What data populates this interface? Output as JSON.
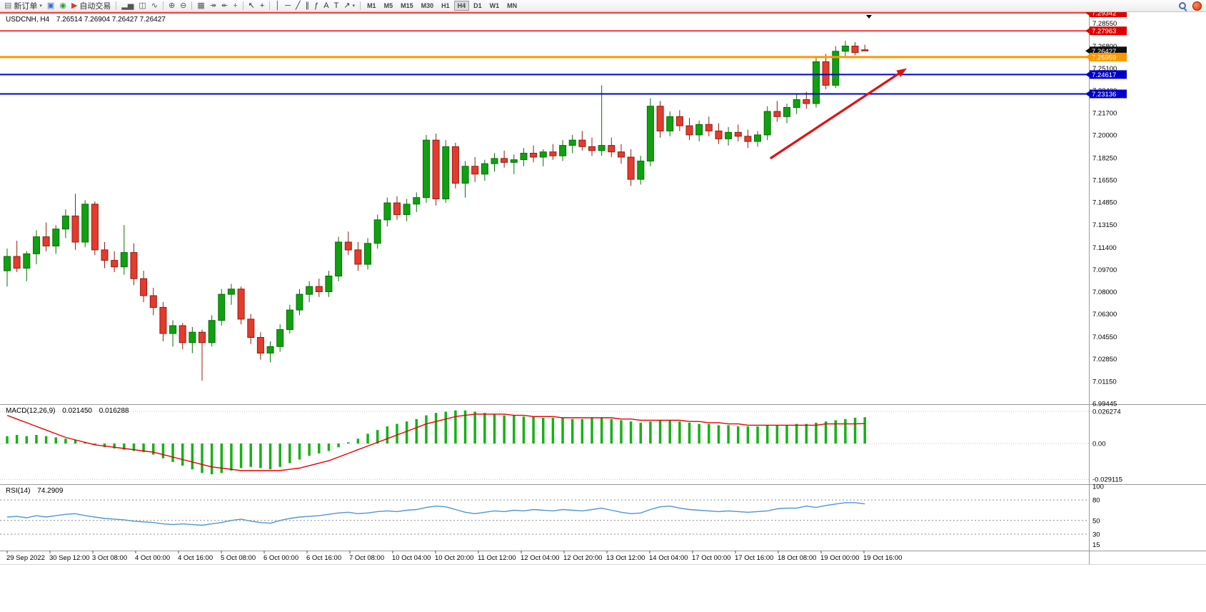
{
  "toolbar": {
    "items": [
      {
        "name": "new-order-button",
        "glyph": "▤",
        "glyph_color": "#777777",
        "label": "新订单",
        "caret": true
      },
      {
        "name": "profiles-icon",
        "glyph": "▣",
        "glyph_color": "#3a6fd8"
      },
      {
        "name": "data-window-icon",
        "glyph": "◉",
        "glyph_color": "#2f9e44"
      },
      {
        "name": "auto-trading-button",
        "glyph": "▶",
        "glyph_color": "#d04030",
        "label": "自动交易"
      },
      {
        "sep": true
      },
      {
        "name": "bar-chart-type-button",
        "glyph": "▂▅",
        "glyph_color": "#555555"
      },
      {
        "name": "candlestick-chart-type-button",
        "glyph": "◫",
        "glyph_color": "#555555"
      },
      {
        "name": "line-chart-type-button",
        "glyph": "∿",
        "glyph_color": "#555555"
      },
      {
        "sep": true
      },
      {
        "name": "zoom-in-button",
        "glyph": "⊕",
        "glyph_color": "#555555"
      },
      {
        "name": "zoom-out-button",
        "glyph": "⊖",
        "glyph_color": "#555555"
      },
      {
        "sep": true
      },
      {
        "name": "tile-windows-button",
        "glyph": "▦",
        "glyph_color": "#555555"
      },
      {
        "name": "auto-scroll-button",
        "glyph": "↠",
        "glyph_color": "#555555"
      },
      {
        "name": "chart-shift-button",
        "glyph": "↞",
        "glyph_color": "#555555"
      },
      {
        "name": "indicators-button",
        "glyph": "+",
        "glyph_color": "#1a9e1a"
      },
      {
        "sep": true
      },
      {
        "name": "cursor-button",
        "glyph": "↖",
        "glyph_color": "#333333"
      },
      {
        "name": "crosshair-button",
        "glyph": "+",
        "glyph_color": "#333333"
      },
      {
        "sep": true
      },
      {
        "name": "vertical-line-button",
        "glyph": "│",
        "glyph_color": "#333333"
      },
      {
        "name": "horizontal-line-button",
        "glyph": "─",
        "glyph_color": "#333333"
      },
      {
        "name": "trendline-button",
        "glyph": "╱",
        "glyph_color": "#333333"
      },
      {
        "name": "equidistant-channel-button",
        "glyph": "∥",
        "glyph_color": "#333333"
      },
      {
        "name": "fibonacci-button",
        "glyph": "ƒ",
        "glyph_color": "#333333"
      },
      {
        "name": "text-button",
        "glyph": "A",
        "glyph_color": "#333333"
      },
      {
        "name": "text-label-button",
        "glyph": "T",
        "glyph_color": "#333333"
      },
      {
        "name": "arrows-button",
        "glyph": "↗",
        "glyph_color": "#333333",
        "caret": true
      }
    ],
    "timeframes": [
      "M1",
      "M5",
      "M15",
      "M30",
      "H1",
      "H4",
      "D1",
      "W1",
      "MN"
    ],
    "active_timeframe": "H4",
    "right_icons": [
      {
        "name": "search-icon",
        "css": "search"
      },
      {
        "name": "notification-icon",
        "css": "dot"
      }
    ]
  },
  "chart_data": {
    "type": "candlestick",
    "symbol": "USDCNH",
    "timeframe": "H4",
    "title_symbol": "USDCNH, H4",
    "title_ohlc": "7.26514 7.26904 7.26427 7.26427",
    "ylim": [
      6.99445,
      7.29342
    ],
    "grid": false,
    "colors": {
      "bull": "#10A010",
      "bull_border": "#077107",
      "bear": "#E33B2D",
      "bear_border": "#951B10",
      "macd_hist": "#18B018",
      "macd_signal": "#E80000",
      "rsi": "#4E96D6",
      "arrow": "#E01212"
    },
    "candles": [
      [
        7.096,
        7.113,
        7.084,
        7.107
      ],
      [
        7.107,
        7.119,
        7.095,
        7.098
      ],
      [
        7.098,
        7.111,
        7.088,
        7.109
      ],
      [
        7.109,
        7.127,
        7.101,
        7.122
      ],
      [
        7.122,
        7.133,
        7.111,
        7.115
      ],
      [
        7.115,
        7.131,
        7.109,
        7.128
      ],
      [
        7.128,
        7.143,
        7.121,
        7.138
      ],
      [
        7.138,
        7.155,
        7.112,
        7.118
      ],
      [
        7.118,
        7.15,
        7.114,
        7.147
      ],
      [
        7.147,
        7.149,
        7.108,
        7.112
      ],
      [
        7.112,
        7.118,
        7.098,
        7.104
      ],
      [
        7.104,
        7.111,
        7.095,
        7.099
      ],
      [
        7.099,
        7.131,
        7.093,
        7.11
      ],
      [
        7.11,
        7.117,
        7.085,
        7.09
      ],
      [
        7.09,
        7.096,
        7.072,
        7.077
      ],
      [
        7.077,
        7.083,
        7.062,
        7.068
      ],
      [
        7.068,
        7.072,
        7.042,
        7.048
      ],
      [
        7.048,
        7.058,
        7.038,
        7.054
      ],
      [
        7.054,
        7.056,
        7.036,
        7.041
      ],
      [
        7.041,
        7.053,
        7.033,
        7.049
      ],
      [
        7.049,
        7.051,
        7.012,
        7.041
      ],
      [
        7.041,
        7.062,
        7.038,
        7.058
      ],
      [
        7.058,
        7.082,
        7.054,
        7.078
      ],
      [
        7.078,
        7.086,
        7.07,
        7.082
      ],
      [
        7.082,
        7.084,
        7.055,
        7.059
      ],
      [
        7.059,
        7.063,
        7.04,
        7.045
      ],
      [
        7.045,
        7.049,
        7.028,
        7.033
      ],
      [
        7.033,
        7.042,
        7.026,
        7.038
      ],
      [
        7.038,
        7.055,
        7.034,
        7.051
      ],
      [
        7.051,
        7.07,
        7.048,
        7.066
      ],
      [
        7.066,
        7.082,
        7.062,
        7.078
      ],
      [
        7.078,
        7.088,
        7.072,
        7.084
      ],
      [
        7.084,
        7.09,
        7.076,
        7.08
      ],
      [
        7.08,
        7.096,
        7.076,
        7.092
      ],
      [
        7.092,
        7.122,
        7.088,
        7.118
      ],
      [
        7.118,
        7.126,
        7.108,
        7.112
      ],
      [
        7.112,
        7.118,
        7.096,
        7.101
      ],
      [
        7.101,
        7.121,
        7.097,
        7.117
      ],
      [
        7.117,
        7.139,
        7.113,
        7.135
      ],
      [
        7.135,
        7.152,
        7.13,
        7.148
      ],
      [
        7.148,
        7.153,
        7.135,
        7.139
      ],
      [
        7.139,
        7.151,
        7.134,
        7.147
      ],
      [
        7.147,
        7.156,
        7.141,
        7.152
      ],
      [
        7.152,
        7.2,
        7.148,
        7.196
      ],
      [
        7.196,
        7.201,
        7.146,
        7.151
      ],
      [
        7.151,
        7.196,
        7.148,
        7.191
      ],
      [
        7.191,
        7.194,
        7.159,
        7.163
      ],
      [
        7.163,
        7.18,
        7.152,
        7.176
      ],
      [
        7.176,
        7.183,
        7.164,
        7.17
      ],
      [
        7.17,
        7.181,
        7.165,
        7.178
      ],
      [
        7.178,
        7.186,
        7.172,
        7.182
      ],
      [
        7.182,
        7.188,
        7.175,
        7.179
      ],
      [
        7.179,
        7.185,
        7.17,
        7.181
      ],
      [
        7.181,
        7.19,
        7.176,
        7.186
      ],
      [
        7.186,
        7.192,
        7.179,
        7.183
      ],
      [
        7.183,
        7.189,
        7.176,
        7.187
      ],
      [
        7.187,
        7.193,
        7.181,
        7.184
      ],
      [
        7.184,
        7.196,
        7.18,
        7.192
      ],
      [
        7.192,
        7.2,
        7.186,
        7.196
      ],
      [
        7.196,
        7.203,
        7.188,
        7.191
      ],
      [
        7.191,
        7.198,
        7.184,
        7.188
      ],
      [
        7.188,
        7.238,
        7.184,
        7.192
      ],
      [
        7.192,
        7.198,
        7.183,
        7.187
      ],
      [
        7.187,
        7.193,
        7.178,
        7.183
      ],
      [
        7.183,
        7.189,
        7.161,
        7.166
      ],
      [
        7.166,
        7.184,
        7.162,
        7.18
      ],
      [
        7.18,
        7.228,
        7.176,
        7.222
      ],
      [
        7.222,
        7.226,
        7.198,
        7.203
      ],
      [
        7.203,
        7.218,
        7.199,
        7.214
      ],
      [
        7.214,
        7.219,
        7.203,
        7.207
      ],
      [
        7.207,
        7.213,
        7.196,
        7.2
      ],
      [
        7.2,
        7.211,
        7.195,
        7.208
      ],
      [
        7.208,
        7.214,
        7.199,
        7.203
      ],
      [
        7.203,
        7.209,
        7.193,
        7.197
      ],
      [
        7.197,
        7.206,
        7.192,
        7.202
      ],
      [
        7.202,
        7.208,
        7.195,
        7.199
      ],
      [
        7.199,
        7.204,
        7.19,
        7.195
      ],
      [
        7.195,
        7.203,
        7.191,
        7.2
      ],
      [
        7.2,
        7.222,
        7.196,
        7.218
      ],
      [
        7.218,
        7.226,
        7.21,
        7.214
      ],
      [
        7.214,
        7.224,
        7.209,
        7.221
      ],
      [
        7.221,
        7.231,
        7.216,
        7.227
      ],
      [
        7.227,
        7.233,
        7.22,
        7.224
      ],
      [
        7.224,
        7.259,
        7.221,
        7.256
      ],
      [
        7.256,
        7.262,
        7.235,
        7.238
      ],
      [
        7.238,
        7.268,
        7.236,
        7.264
      ],
      [
        7.264,
        7.272,
        7.259,
        7.268
      ],
      [
        7.268,
        7.271,
        7.261,
        7.263
      ],
      [
        7.26514,
        7.26904,
        7.26427,
        7.26427
      ]
    ],
    "time_labels": [
      "29 Sep 2022",
      "30 Sep 12:00",
      "3 Oct 08:00",
      "4 Oct 00:00",
      "4 Oct 16:00",
      "5 Oct 08:00",
      "6 Oct 00:00",
      "6 Oct 16:00",
      "7 Oct 08:00",
      "10 Oct 04:00",
      "10 Oct 20:00",
      "11 Oct 12:00",
      "12 Oct 04:00",
      "12 Oct 20:00",
      "13 Oct 12:00",
      "14 Oct 04:00",
      "17 Oct 00:00",
      "17 Oct 16:00",
      "18 Oct 08:00",
      "19 Oct 00:00",
      "19 Oct 16:00"
    ],
    "price_axis_labels": [
      "7.28550",
      "7.26800",
      "7.25100",
      "7.23400",
      "7.21700",
      "7.20000",
      "7.18250",
      "7.16550",
      "7.14850",
      "7.13150",
      "7.11400",
      "7.09700",
      "7.08000",
      "7.06300",
      "7.04550",
      "7.02850",
      "7.01150",
      "6.99445"
    ],
    "price_badges": [
      {
        "text": "7.29342",
        "value": 7.29342,
        "bg": "#E00000"
      },
      {
        "text": "7.27963",
        "value": 7.27963,
        "bg": "#E00000"
      },
      {
        "text": "7.26427",
        "value": 7.26427,
        "bg": "#101010"
      },
      {
        "text": "7.25959",
        "value": 7.25959,
        "bg": "#FF9800"
      },
      {
        "text": "7.24617",
        "value": 7.24617,
        "bg": "#0000C8"
      },
      {
        "text": "7.23136",
        "value": 7.23136,
        "bg": "#0000C8"
      }
    ],
    "hlines": [
      {
        "value": 7.29342,
        "color": "#FF0000",
        "width": 1.5
      },
      {
        "value": 7.27963,
        "color": "#FF0000",
        "width": 1.5
      },
      {
        "value": 7.25959,
        "color": "#FF9800",
        "width": 3
      },
      {
        "value": 7.24617,
        "color": "#0000D0",
        "width": 2
      },
      {
        "value": 7.23136,
        "color": "#0000D0",
        "width": 2
      }
    ],
    "arrow": {
      "from_bar": 78.3,
      "from_price": 7.182,
      "to_bar": 92.0,
      "to_price": 7.2495
    },
    "macd": {
      "title": "MACD(12,26,9)",
      "value_main": "0.021450",
      "value_signal": "0.016288",
      "axis_labels": [
        "0.026274",
        "0.00",
        "-0.029115"
      ],
      "axis_values": [
        0.026274,
        0,
        -0.029115
      ],
      "histogram": [
        0.006,
        0.007,
        0.006,
        0.007,
        0.006,
        0.005,
        0.004,
        0.003,
        0.001,
        -0.001,
        -0.003,
        -0.004,
        -0.005,
        -0.006,
        -0.007,
        -0.009,
        -0.012,
        -0.015,
        -0.018,
        -0.021,
        -0.024,
        -0.025,
        -0.024,
        -0.022,
        -0.02,
        -0.019,
        -0.02,
        -0.021,
        -0.019,
        -0.016,
        -0.013,
        -0.01,
        -0.008,
        -0.006,
        -0.003,
        0.001,
        0.004,
        0.008,
        0.011,
        0.014,
        0.016,
        0.018,
        0.02,
        0.023,
        0.025,
        0.026,
        0.027,
        0.027,
        0.026,
        0.025,
        0.024,
        0.023,
        0.023,
        0.022,
        0.022,
        0.021,
        0.021,
        0.021,
        0.02,
        0.02,
        0.021,
        0.021,
        0.02,
        0.019,
        0.018,
        0.017,
        0.018,
        0.019,
        0.019,
        0.018,
        0.017,
        0.016,
        0.016,
        0.015,
        0.015,
        0.014,
        0.014,
        0.014,
        0.015,
        0.015,
        0.015,
        0.016,
        0.016,
        0.017,
        0.018,
        0.019,
        0.02,
        0.021,
        0.0215
      ],
      "signal": [
        0.023,
        0.02,
        0.017,
        0.014,
        0.011,
        0.008,
        0.005,
        0.003,
        0.001,
        -0.001,
        -0.002,
        -0.003,
        -0.004,
        -0.005,
        -0.006,
        -0.007,
        -0.009,
        -0.011,
        -0.013,
        -0.015,
        -0.017,
        -0.019,
        -0.02,
        -0.021,
        -0.022,
        -0.022,
        -0.022,
        -0.022,
        -0.022,
        -0.021,
        -0.02,
        -0.018,
        -0.016,
        -0.014,
        -0.011,
        -0.008,
        -0.005,
        -0.002,
        0.001,
        0.004,
        0.007,
        0.01,
        0.013,
        0.016,
        0.018,
        0.02,
        0.022,
        0.023,
        0.024,
        0.024,
        0.024,
        0.024,
        0.023,
        0.023,
        0.022,
        0.022,
        0.022,
        0.021,
        0.021,
        0.021,
        0.021,
        0.021,
        0.021,
        0.02,
        0.02,
        0.019,
        0.019,
        0.019,
        0.019,
        0.019,
        0.018,
        0.018,
        0.017,
        0.017,
        0.016,
        0.016,
        0.015,
        0.015,
        0.015,
        0.015,
        0.015,
        0.015,
        0.015,
        0.015,
        0.016,
        0.016,
        0.016,
        0.016,
        0.0163
      ]
    },
    "rsi": {
      "title": "RSI(14)",
      "value": "74.2909",
      "levels": [
        80,
        50,
        30
      ],
      "axis_labels": [
        "100",
        "80",
        "50",
        "30",
        "15"
      ],
      "axis_label_values": [
        100,
        80,
        50,
        30,
        15
      ],
      "values": [
        55,
        56,
        54,
        57,
        55,
        57,
        59,
        60,
        57,
        55,
        53,
        52,
        51,
        49,
        48,
        47,
        45,
        44,
        45,
        44,
        43,
        45,
        47,
        50,
        52,
        49,
        47,
        46,
        50,
        53,
        55,
        56,
        57,
        59,
        61,
        62,
        60,
        61,
        63,
        64,
        63,
        65,
        66,
        69,
        71,
        70,
        66,
        62,
        60,
        62,
        64,
        63,
        65,
        64,
        66,
        65,
        64,
        66,
        65,
        64,
        66,
        68,
        65,
        62,
        60,
        61,
        66,
        70,
        71,
        68,
        66,
        65,
        64,
        63,
        64,
        63,
        62,
        63,
        64,
        67,
        68,
        68,
        71,
        69,
        72,
        74,
        76,
        76,
        74.29
      ]
    }
  }
}
